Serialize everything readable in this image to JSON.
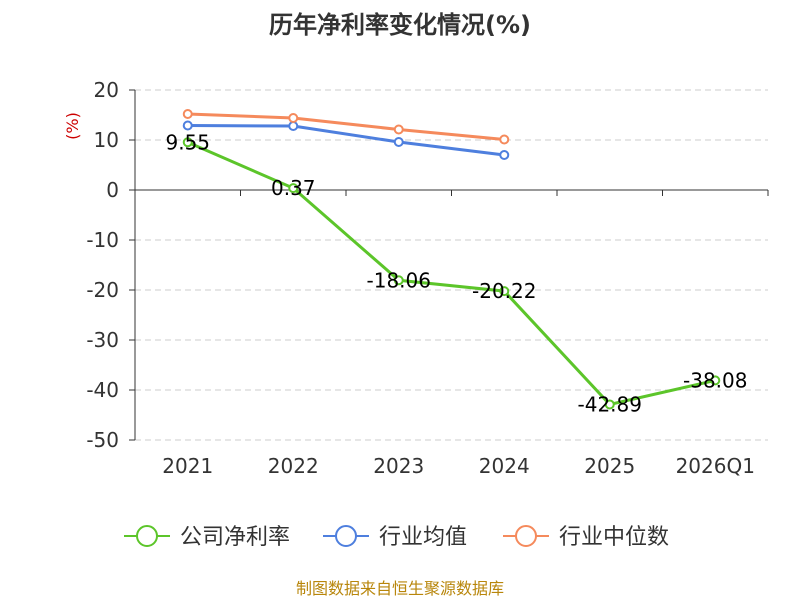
{
  "chart_data": {
    "type": "line",
    "title": "历年净利率变化情况(%)",
    "ylabel": "(%)",
    "xlabel": "",
    "categories": [
      "2021",
      "2022",
      "2023",
      "2024",
      "2025",
      "2026Q1"
    ],
    "ylim": [
      -50,
      20
    ],
    "yticks": [
      20,
      10,
      0,
      -10,
      -20,
      -30,
      -40,
      -50
    ],
    "series": [
      {
        "name": "公司净利率",
        "color": "#5cc52a",
        "values": [
          9.55,
          0.37,
          -18.06,
          -20.22,
          -42.89,
          -38.08
        ],
        "labels": [
          "9.55",
          "0.37",
          "-18.06",
          "-20.22",
          "-42.89",
          "-38.08"
        ]
      },
      {
        "name": "行业均值",
        "color": "#4e7fde",
        "values": [
          12.9,
          12.8,
          9.6,
          7.0,
          null,
          null
        ]
      },
      {
        "name": "行业中位数",
        "color": "#f58a5c",
        "values": [
          15.2,
          14.4,
          12.1,
          10.1,
          null,
          null
        ]
      }
    ],
    "grid": true,
    "legend_position": "bottom"
  },
  "source": "制图数据来自恒生聚源数据库"
}
